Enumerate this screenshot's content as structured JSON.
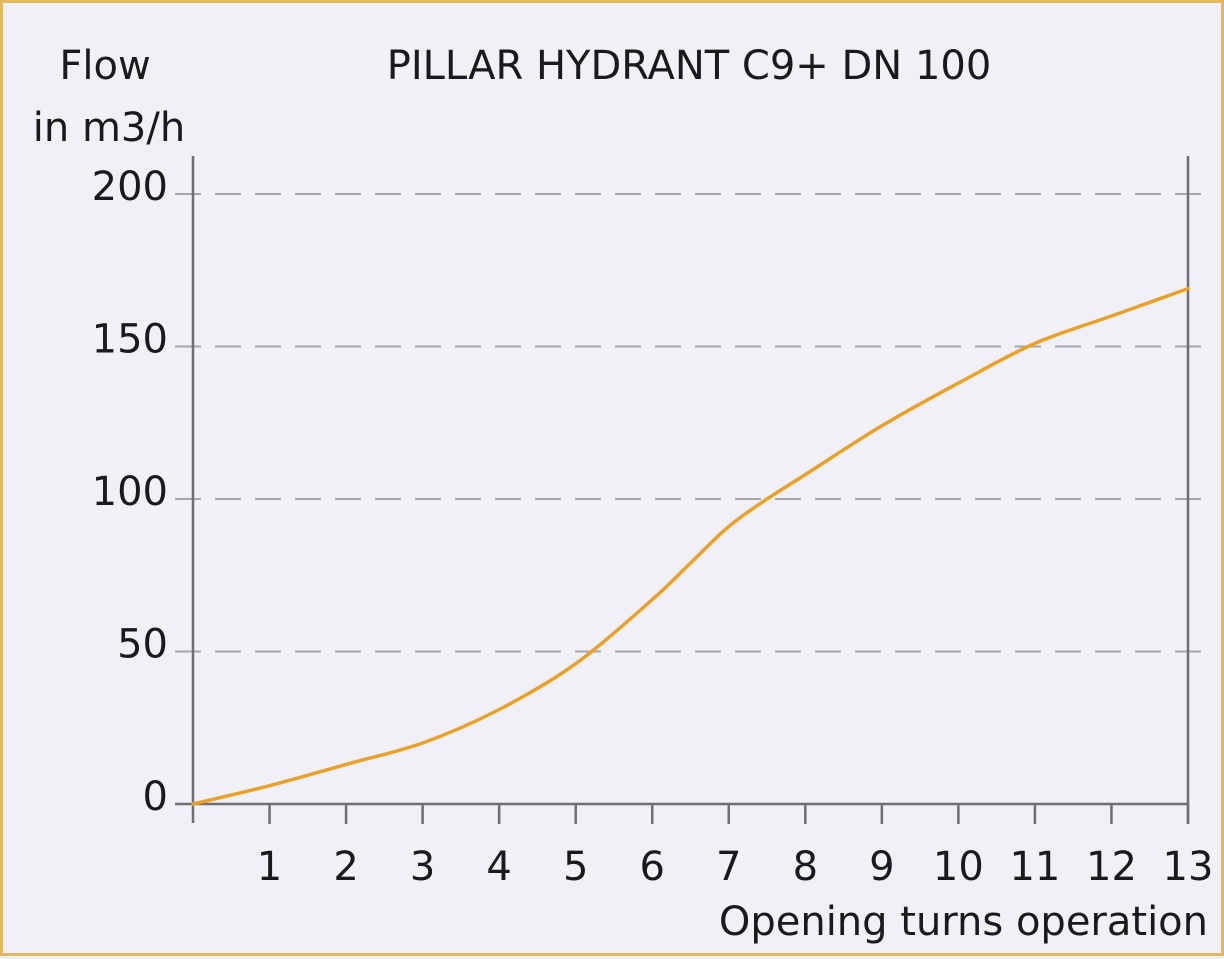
{
  "chart_data": {
    "type": "line",
    "title": "PILLAR HYDRANT C9+ DN 100",
    "ylabel_line1": "Flow",
    "ylabel_line2": "in m3/h",
    "xlabel": "Opening turns operation",
    "xlim": [
      0,
      13
    ],
    "ylim": [
      0,
      200
    ],
    "x_ticks": [
      1,
      2,
      3,
      4,
      5,
      6,
      7,
      8,
      9,
      10,
      11,
      12,
      13
    ],
    "y_ticks": [
      0,
      50,
      100,
      150,
      200
    ],
    "grid": "dashed-horizontal",
    "line_color": "#e9a12a",
    "series": [
      {
        "x": [
          0,
          1,
          2,
          3,
          4,
          5,
          6,
          6.5,
          7,
          7.5,
          8,
          9,
          10,
          11,
          12,
          13
        ],
        "values": [
          0,
          6,
          13,
          20,
          31,
          46,
          67,
          79,
          91,
          100,
          108,
          124,
          138,
          151,
          160,
          169
        ]
      }
    ]
  }
}
